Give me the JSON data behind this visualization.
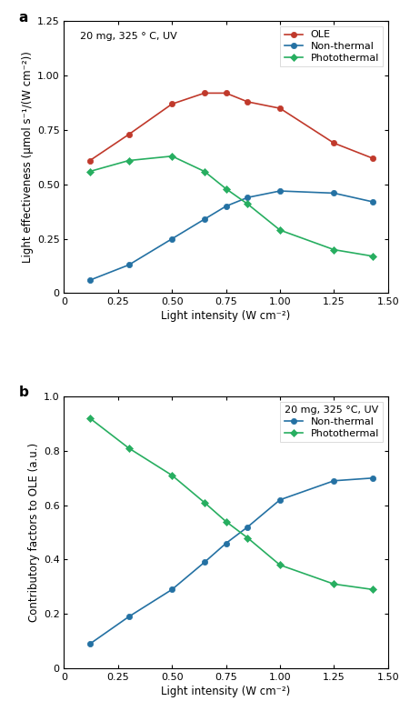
{
  "panel_a": {
    "annotation": "20 mg, 325 ° C, UV",
    "OLE_x": [
      0.12,
      0.3,
      0.5,
      0.65,
      0.75,
      0.85,
      1.0,
      1.25,
      1.43
    ],
    "OLE_y": [
      0.61,
      0.73,
      0.87,
      0.92,
      0.92,
      0.88,
      0.85,
      0.69,
      0.62
    ],
    "nonthermal_x": [
      0.12,
      0.3,
      0.5,
      0.65,
      0.75,
      0.85,
      1.0,
      1.25,
      1.43
    ],
    "nonthermal_y": [
      0.06,
      0.13,
      0.25,
      0.34,
      0.4,
      0.44,
      0.47,
      0.46,
      0.42
    ],
    "photothermal_x": [
      0.12,
      0.3,
      0.5,
      0.65,
      0.75,
      0.85,
      1.0,
      1.25,
      1.43
    ],
    "photothermal_y": [
      0.56,
      0.61,
      0.63,
      0.56,
      0.48,
      0.41,
      0.29,
      0.2,
      0.17
    ],
    "xlabel": "Light intensity (W cm⁻²)",
    "ylabel": "Light effectiveness (μmol s⁻¹/(W cm⁻²))",
    "xlim": [
      0,
      1.5
    ],
    "ylim": [
      0,
      1.25
    ],
    "xticks": [
      0,
      0.25,
      0.5,
      0.75,
      1.0,
      1.25,
      1.5
    ],
    "yticks": [
      0,
      0.25,
      0.5,
      0.75,
      1.0,
      1.25
    ],
    "xticklabels": [
      "0",
      "0.25",
      "0.50",
      "0.75",
      "1.00",
      "1.25",
      "1.50"
    ],
    "yticklabels": [
      "0",
      "0.25",
      "0.50",
      "0.75",
      "1.00",
      "1.25"
    ],
    "OLE_color": "#c0392b",
    "nonthermal_color": "#2471a3",
    "photothermal_color": "#27ae60",
    "label_OLE": "OLE",
    "label_nonthermal": "Non-thermal",
    "label_photothermal": "Photothermal"
  },
  "panel_b": {
    "annotation": "20 mg, 325 °C, UV",
    "nonthermal_x": [
      0.12,
      0.3,
      0.5,
      0.65,
      0.75,
      0.85,
      1.0,
      1.25,
      1.43
    ],
    "nonthermal_y": [
      0.09,
      0.19,
      0.29,
      0.39,
      0.46,
      0.52,
      0.62,
      0.69,
      0.7
    ],
    "photothermal_x": [
      0.12,
      0.3,
      0.5,
      0.65,
      0.75,
      0.85,
      1.0,
      1.25,
      1.43
    ],
    "photothermal_y": [
      0.92,
      0.81,
      0.71,
      0.61,
      0.54,
      0.48,
      0.38,
      0.31,
      0.29
    ],
    "xlabel": "Light intensity (W cm⁻²)",
    "ylabel": "Contributory factors to OLE (a.u.)",
    "xlim": [
      0,
      1.5
    ],
    "ylim": [
      0,
      1.0
    ],
    "xticks": [
      0,
      0.25,
      0.5,
      0.75,
      1.0,
      1.25,
      1.5
    ],
    "yticks": [
      0,
      0.2,
      0.4,
      0.6,
      0.8,
      1.0
    ],
    "xticklabels": [
      "0",
      "0.25",
      "0.50",
      "0.75",
      "1.00",
      "1.25",
      "1.50"
    ],
    "yticklabels": [
      "0",
      "0.2",
      "0.4",
      "0.6",
      "0.8",
      "1.0"
    ],
    "nonthermal_color": "#2471a3",
    "photothermal_color": "#27ae60",
    "label_nonthermal": "Non-thermal",
    "label_photothermal": "Photothermal"
  },
  "font_family": "Arial",
  "tick_fontsize": 8,
  "label_fontsize": 8.5,
  "annotation_fontsize": 8,
  "legend_fontsize": 8,
  "panel_label_fontsize": 11,
  "linewidth": 1.2,
  "markersize": 4.5,
  "bg_color": "#f5f5f5"
}
